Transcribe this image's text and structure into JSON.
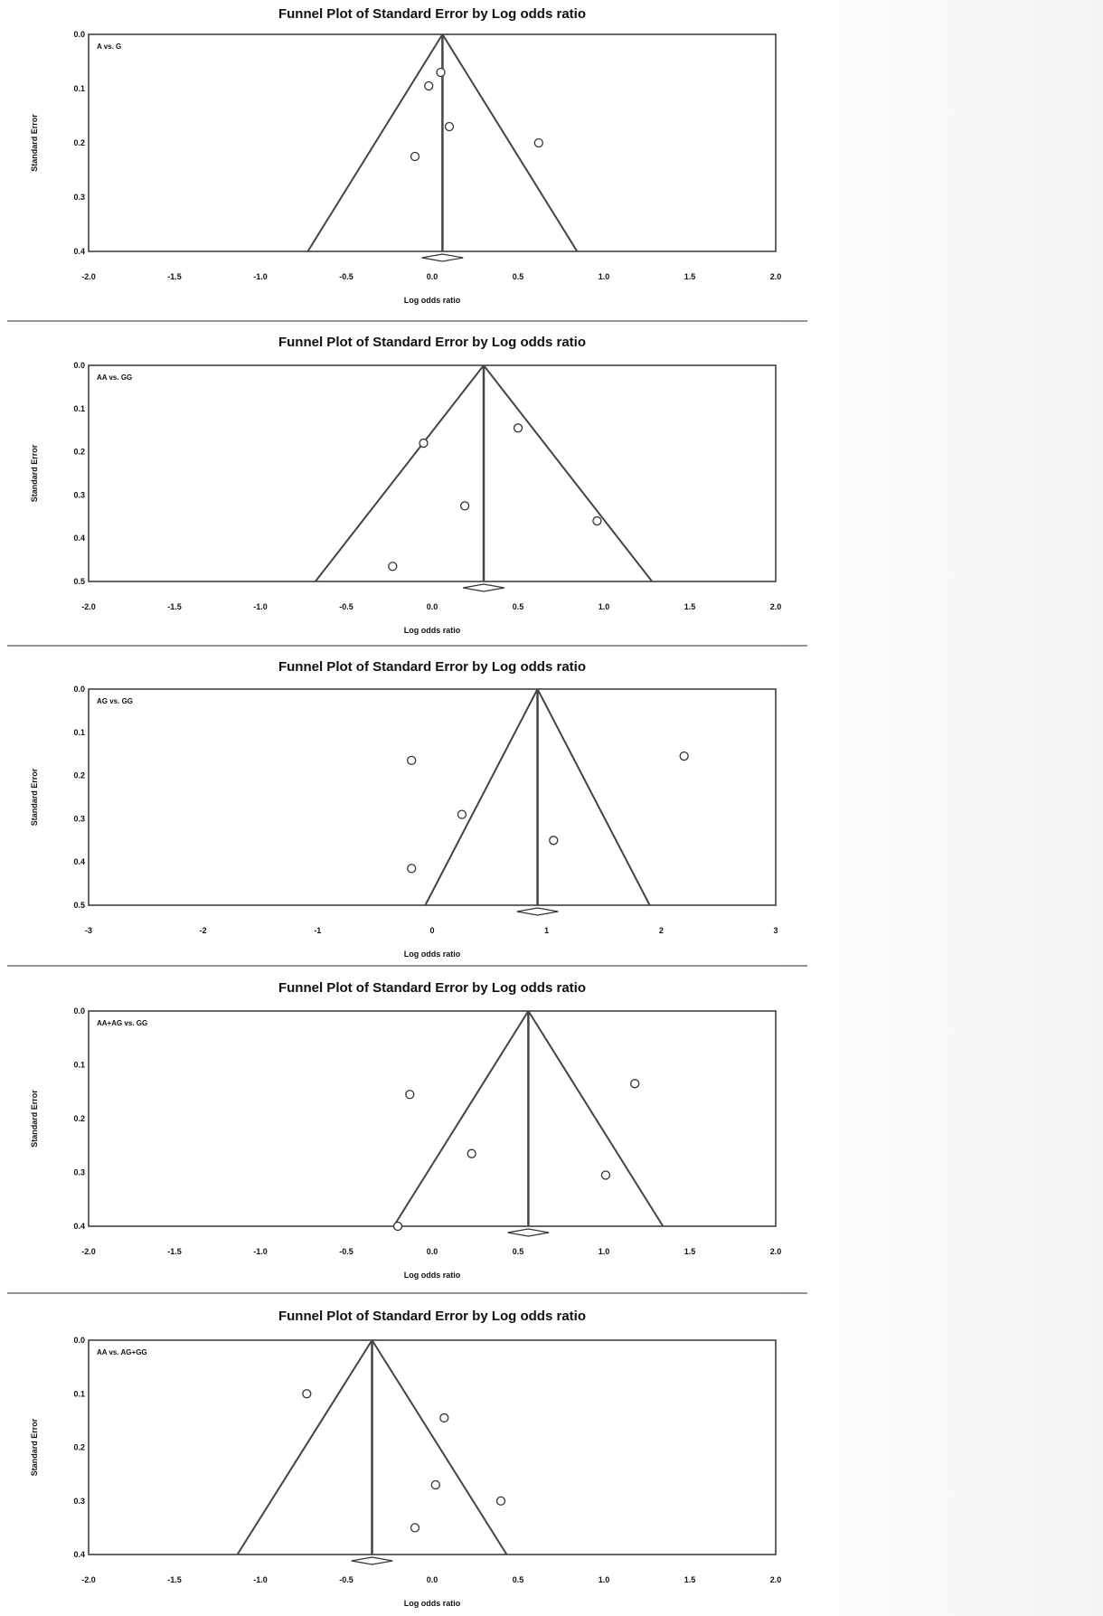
{
  "chart_data": [
    {
      "type": "scatter",
      "title": "Funnel Plot of Standard Error by Log odds ratio",
      "panel_label": "A vs. G",
      "xlabel": "Log odds ratio",
      "ylabel": "Standard Error",
      "xlim": [
        -2.0,
        2.0
      ],
      "ylim": [
        0.0,
        0.4
      ],
      "xticks": [
        "-2.0",
        "-1.5",
        "-1.0",
        "-0.5",
        "0.0",
        "0.5",
        "1.0",
        "1.5",
        "2.0"
      ],
      "yticks": [
        "0.0",
        "0.1",
        "0.2",
        "0.3",
        "0.4"
      ],
      "y_inverted": true,
      "pooled_estimate": 0.06,
      "points": [
        {
          "x": 0.05,
          "y": 0.07
        },
        {
          "x": -0.02,
          "y": 0.095
        },
        {
          "x": 0.1,
          "y": 0.17
        },
        {
          "x": 0.62,
          "y": 0.2
        },
        {
          "x": -0.1,
          "y": 0.225
        }
      ]
    },
    {
      "type": "scatter",
      "title": "Funnel Plot of Standard Error by Log odds ratio",
      "panel_label": "AA vs. GG",
      "xlabel": "Log odds ratio",
      "ylabel": "Standard Error",
      "xlim": [
        -2.0,
        2.0
      ],
      "ylim": [
        0.0,
        0.5
      ],
      "xticks": [
        "-2.0",
        "-1.5",
        "-1.0",
        "-0.5",
        "0.0",
        "0.5",
        "1.0",
        "1.5",
        "2.0"
      ],
      "yticks": [
        "0.0",
        "0.1",
        "0.2",
        "0.3",
        "0.4",
        "0.5"
      ],
      "y_inverted": true,
      "pooled_estimate": 0.3,
      "points": [
        {
          "x": 0.5,
          "y": 0.145
        },
        {
          "x": -0.05,
          "y": 0.18
        },
        {
          "x": 0.19,
          "y": 0.325
        },
        {
          "x": 0.96,
          "y": 0.36
        },
        {
          "x": -0.23,
          "y": 0.465
        }
      ]
    },
    {
      "type": "scatter",
      "title": "Funnel Plot of Standard Error by Log odds ratio",
      "panel_label": "AG vs. GG",
      "xlabel": "Log odds ratio",
      "ylabel": "Standard Error",
      "xlim": [
        -3,
        3
      ],
      "ylim": [
        0.0,
        0.5
      ],
      "xticks": [
        "-3",
        "-2",
        "-1",
        "0",
        "1",
        "2",
        "3"
      ],
      "yticks": [
        "0.0",
        "0.1",
        "0.2",
        "0.3",
        "0.4",
        "0.5"
      ],
      "y_inverted": true,
      "pooled_estimate": 0.92,
      "points": [
        {
          "x": 2.2,
          "y": 0.155
        },
        {
          "x": -0.18,
          "y": 0.165
        },
        {
          "x": 0.26,
          "y": 0.29
        },
        {
          "x": 1.06,
          "y": 0.35
        },
        {
          "x": -0.18,
          "y": 0.415
        }
      ]
    },
    {
      "type": "scatter",
      "title": "Funnel Plot of Standard Error by Log odds ratio",
      "panel_label": "AA+AG vs. GG",
      "xlabel": "Log odds ratio",
      "ylabel": "Standard Error",
      "xlim": [
        -2.0,
        2.0
      ],
      "ylim": [
        0.0,
        0.4
      ],
      "xticks": [
        "-2.0",
        "-1.5",
        "-1.0",
        "-0.5",
        "0.0",
        "0.5",
        "1.0",
        "1.5",
        "2.0"
      ],
      "yticks": [
        "0.0",
        "0.1",
        "0.2",
        "0.3",
        "0.4"
      ],
      "y_inverted": true,
      "pooled_estimate": 0.56,
      "points": [
        {
          "x": 1.18,
          "y": 0.135
        },
        {
          "x": -0.13,
          "y": 0.155
        },
        {
          "x": 0.23,
          "y": 0.265
        },
        {
          "x": 1.01,
          "y": 0.305
        },
        {
          "x": -0.2,
          "y": 0.4
        }
      ]
    },
    {
      "type": "scatter",
      "title": "Funnel Plot of Standard Error by Log odds ratio",
      "panel_label": "AA vs. AG+GG",
      "xlabel": "Log odds ratio",
      "ylabel": "Standard Error",
      "xlim": [
        -2.0,
        2.0
      ],
      "ylim": [
        0.0,
        0.4
      ],
      "xticks": [
        "-2.0",
        "-1.5",
        "-1.0",
        "-0.5",
        "0.0",
        "0.5",
        "1.0",
        "1.5",
        "2.0"
      ],
      "yticks": [
        "0.0",
        "0.1",
        "0.2",
        "0.3",
        "0.4"
      ],
      "y_inverted": true,
      "pooled_estimate": -0.35,
      "points": [
        {
          "x": -0.73,
          "y": 0.1
        },
        {
          "x": 0.07,
          "y": 0.145
        },
        {
          "x": 0.02,
          "y": 0.27
        },
        {
          "x": 0.4,
          "y": 0.3
        },
        {
          "x": -0.1,
          "y": 0.35
        }
      ]
    }
  ]
}
